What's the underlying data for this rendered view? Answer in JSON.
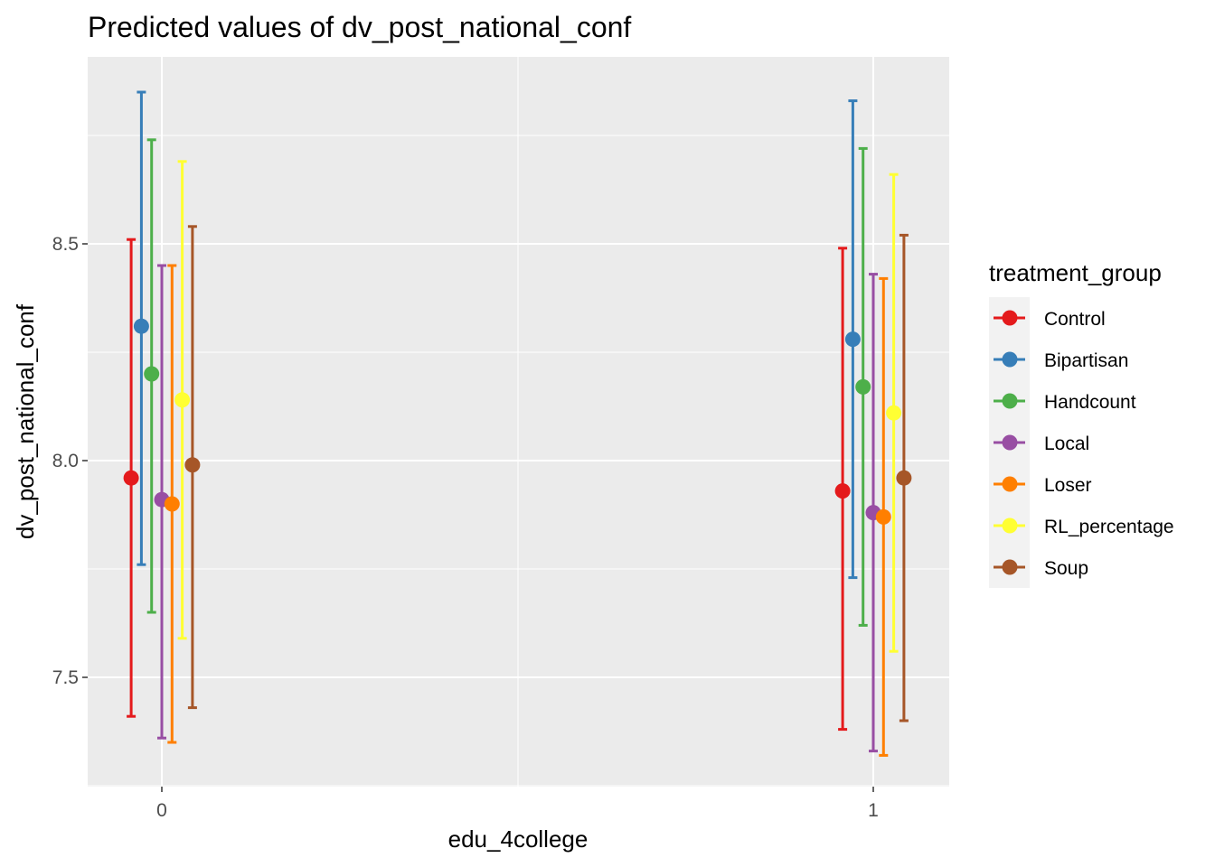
{
  "chart_data": {
    "type": "errorbar",
    "title": "Predicted values of dv_post_national_conf",
    "xlabel": "edu_4college",
    "ylabel": "dv_post_national_conf",
    "categories": [
      "0",
      "1"
    ],
    "yticks": [
      "7.5",
      "8.0",
      "8.5"
    ],
    "ylim": [
      7.25,
      8.93
    ],
    "grid": true,
    "legend": {
      "title": "treatment_group",
      "position": "right"
    },
    "series": [
      {
        "name": "Control",
        "color": "#E41A1C",
        "estimate": [
          7.96,
          7.93
        ],
        "lower": [
          7.41,
          7.38
        ],
        "upper": [
          8.51,
          8.49
        ]
      },
      {
        "name": "Bipartisan",
        "color": "#377EB8",
        "estimate": [
          8.31,
          8.28
        ],
        "lower": [
          7.76,
          7.73
        ],
        "upper": [
          8.85,
          8.83
        ]
      },
      {
        "name": "Handcount",
        "color": "#4DAF4A",
        "estimate": [
          8.2,
          8.17
        ],
        "lower": [
          7.65,
          7.62
        ],
        "upper": [
          8.74,
          8.72
        ]
      },
      {
        "name": "Local",
        "color": "#984EA3",
        "estimate": [
          7.91,
          7.88
        ],
        "lower": [
          7.36,
          7.33
        ],
        "upper": [
          8.45,
          8.43
        ]
      },
      {
        "name": "Loser",
        "color": "#FF7F00",
        "estimate": [
          7.9,
          7.87
        ],
        "lower": [
          7.35,
          7.32
        ],
        "upper": [
          8.45,
          8.42
        ]
      },
      {
        "name": "RL_percentage",
        "color": "#FFFF33",
        "estimate": [
          8.14,
          8.11
        ],
        "lower": [
          7.59,
          7.56
        ],
        "upper": [
          8.69,
          8.66
        ]
      },
      {
        "name": "Soup",
        "color": "#A65628",
        "estimate": [
          7.99,
          7.96
        ],
        "lower": [
          7.43,
          7.4
        ],
        "upper": [
          8.54,
          8.52
        ]
      }
    ]
  }
}
